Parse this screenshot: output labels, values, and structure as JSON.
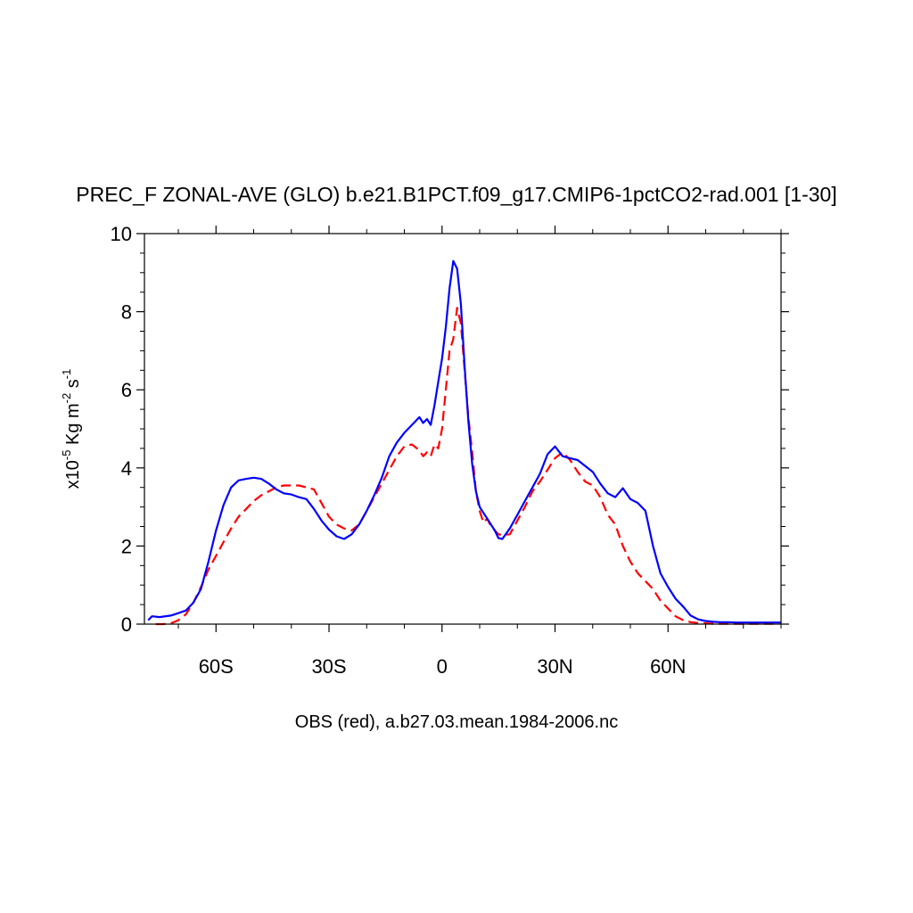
{
  "chart_data": {
    "type": "line",
    "title": "PREC_F ZONAL-AVE (GLO) b.e21.B1PCT.f09_g17.CMIP6-1pctCO2-rad.001 [1-30]",
    "xlabel": "OBS (red), a.b27.03.mean.1984-2006.nc",
    "ylabel": {
      "prefix": "x10",
      "exp1": "-5",
      "mid1": " Kg m",
      "exp2": "-2",
      "mid2": " s",
      "exp3": "-1"
    },
    "xlim": [
      -79,
      90
    ],
    "ylim": [
      0,
      10
    ],
    "x_ticks": [
      {
        "value": -60,
        "label": "60S"
      },
      {
        "value": -30,
        "label": "30S"
      },
      {
        "value": 0,
        "label": "0"
      },
      {
        "value": 30,
        "label": "30N"
      },
      {
        "value": 60,
        "label": "60N"
      }
    ],
    "y_ticks": [
      {
        "value": 0,
        "label": "0"
      },
      {
        "value": 2,
        "label": "2"
      },
      {
        "value": 4,
        "label": "4"
      },
      {
        "value": 6,
        "label": "6"
      },
      {
        "value": 8,
        "label": "8"
      },
      {
        "value": 10,
        "label": "10"
      }
    ],
    "grid": false,
    "series": [
      {
        "color": "#0000ff",
        "dash": "solid",
        "x": [
          -78,
          -77,
          -75,
          -72,
          -70,
          -68,
          -66,
          -64,
          -62,
          -60,
          -58,
          -56,
          -54,
          -52,
          -50,
          -48,
          -46,
          -44,
          -42,
          -40,
          -38,
          -36,
          -34,
          -32,
          -30,
          -28,
          -26,
          -24,
          -22,
          -20,
          -18,
          -16,
          -14,
          -12,
          -10,
          -8,
          -6,
          -5,
          -4,
          -3,
          -2,
          -1,
          0,
          1,
          2,
          3,
          4,
          5,
          6,
          7,
          8,
          9,
          10,
          11,
          12,
          13,
          14,
          15,
          16,
          18,
          20,
          22,
          24,
          26,
          28,
          30,
          32,
          34,
          36,
          38,
          40,
          42,
          44,
          46,
          48,
          50,
          52,
          54,
          56,
          58,
          60,
          62,
          64,
          66,
          68,
          70,
          72,
          74,
          76,
          78,
          80,
          82,
          84,
          86,
          88,
          90
        ],
        "y": [
          0.1,
          0.2,
          0.18,
          0.22,
          0.28,
          0.35,
          0.55,
          0.9,
          1.6,
          2.4,
          3.05,
          3.5,
          3.68,
          3.72,
          3.75,
          3.72,
          3.6,
          3.45,
          3.35,
          3.32,
          3.25,
          3.2,
          2.95,
          2.65,
          2.42,
          2.25,
          2.18,
          2.3,
          2.55,
          2.9,
          3.3,
          3.75,
          4.3,
          4.65,
          4.9,
          5.1,
          5.3,
          5.15,
          5.25,
          5.1,
          5.6,
          6.2,
          6.8,
          7.6,
          8.6,
          9.3,
          9.1,
          8.2,
          6.6,
          5.2,
          4.1,
          3.4,
          3.0,
          2.85,
          2.7,
          2.55,
          2.4,
          2.2,
          2.18,
          2.45,
          2.8,
          3.15,
          3.5,
          3.85,
          4.35,
          4.55,
          4.3,
          4.25,
          4.2,
          4.05,
          3.9,
          3.6,
          3.35,
          3.25,
          3.48,
          3.2,
          3.1,
          2.9,
          2.0,
          1.3,
          0.95,
          0.65,
          0.45,
          0.22,
          0.12,
          0.08,
          0.06,
          0.05,
          0.05,
          0.04,
          0.04,
          0.04,
          0.04,
          0.04,
          0.04,
          0.04
        ]
      },
      {
        "color": "#ff0000",
        "dash": "dashed",
        "x": [
          -76,
          -74,
          -72,
          -70,
          -68,
          -66,
          -64,
          -62,
          -60,
          -58,
          -56,
          -54,
          -52,
          -50,
          -48,
          -46,
          -44,
          -42,
          -40,
          -38,
          -36,
          -34,
          -32,
          -30,
          -28,
          -26,
          -24,
          -22,
          -20,
          -18,
          -16,
          -14,
          -12,
          -10,
          -8,
          -6,
          -5,
          -4,
          -3,
          -2,
          -1,
          0,
          1,
          2,
          3,
          4,
          5,
          6,
          7,
          8,
          9,
          10,
          11,
          12,
          13,
          14,
          15,
          16,
          18,
          20,
          22,
          24,
          26,
          28,
          30,
          32,
          34,
          36,
          38,
          40,
          42,
          44,
          46,
          48,
          50,
          52,
          54,
          56,
          58,
          60,
          62,
          64,
          66,
          68,
          70,
          72,
          74,
          76,
          78,
          80,
          82,
          84,
          86,
          88
        ],
        "y": [
          0.0,
          0.0,
          0.02,
          0.1,
          0.25,
          0.55,
          0.95,
          1.4,
          1.75,
          2.1,
          2.45,
          2.75,
          2.95,
          3.15,
          3.3,
          3.4,
          3.5,
          3.55,
          3.55,
          3.55,
          3.5,
          3.45,
          3.1,
          2.75,
          2.55,
          2.45,
          2.4,
          2.55,
          2.9,
          3.25,
          3.6,
          3.95,
          4.3,
          4.55,
          4.6,
          4.45,
          4.3,
          4.4,
          4.3,
          4.6,
          4.5,
          5.0,
          6.0,
          7.0,
          7.3,
          8.1,
          7.7,
          6.5,
          5.3,
          4.4,
          3.4,
          2.9,
          2.6,
          2.7,
          2.5,
          2.4,
          2.3,
          2.28,
          2.3,
          2.65,
          3.0,
          3.4,
          3.65,
          3.95,
          4.25,
          4.4,
          4.2,
          3.9,
          3.65,
          3.55,
          3.25,
          2.8,
          2.55,
          2.0,
          1.6,
          1.3,
          1.1,
          0.9,
          0.6,
          0.4,
          0.2,
          0.1,
          0.05,
          0.03,
          0.02,
          0.01,
          0.01,
          0.01,
          0.01,
          0.01,
          0.01,
          0.01,
          0.01,
          0.01
        ]
      }
    ]
  }
}
